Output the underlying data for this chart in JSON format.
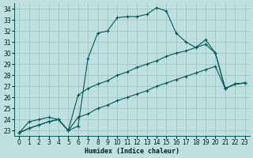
{
  "xlabel": "Humidex (Indice chaleur)",
  "bg_color": "#c0e0e0",
  "grid_color": "#98c8c8",
  "line_color": "#005858",
  "xlim": [
    -0.5,
    23.5
  ],
  "ylim": [
    22.5,
    34.5
  ],
  "yticks": [
    23,
    24,
    25,
    26,
    27,
    28,
    29,
    30,
    31,
    32,
    33,
    34
  ],
  "xticks": [
    0,
    1,
    2,
    3,
    4,
    5,
    6,
    7,
    8,
    9,
    10,
    11,
    12,
    13,
    14,
    15,
    16,
    17,
    18,
    19,
    20,
    21,
    22,
    23
  ],
  "line1_x": [
    0,
    1,
    2,
    3,
    4,
    5,
    6,
    7,
    8,
    9,
    10,
    11,
    12,
    13,
    14,
    15,
    16,
    17,
    18,
    19,
    20,
    21,
    22,
    23
  ],
  "line1_y": [
    22.8,
    23.8,
    24.0,
    24.2,
    24.0,
    23.0,
    23.4,
    29.5,
    31.8,
    32.0,
    33.2,
    33.3,
    33.3,
    33.5,
    34.1,
    33.8,
    31.8,
    31.0,
    30.5,
    31.2,
    30.0,
    26.8,
    27.2,
    27.3
  ],
  "line2_x": [
    0,
    1,
    2,
    3,
    4,
    5,
    6,
    7,
    8,
    9,
    10,
    11,
    12,
    13,
    14,
    15,
    16,
    17,
    18,
    19,
    20,
    21,
    22,
    23
  ],
  "line2_y": [
    22.8,
    23.2,
    23.5,
    23.8,
    24.0,
    23.0,
    26.2,
    26.8,
    27.2,
    27.5,
    28.0,
    28.3,
    28.7,
    29.0,
    29.3,
    29.7,
    30.0,
    30.2,
    30.5,
    30.8,
    30.0,
    26.8,
    27.2,
    27.3
  ],
  "line3_x": [
    0,
    1,
    2,
    3,
    4,
    5,
    6,
    7,
    8,
    9,
    10,
    11,
    12,
    13,
    14,
    15,
    16,
    17,
    18,
    19,
    20,
    21,
    22,
    23
  ],
  "line3_y": [
    22.8,
    23.2,
    23.5,
    23.8,
    24.0,
    23.0,
    24.2,
    24.5,
    25.0,
    25.3,
    25.7,
    26.0,
    26.3,
    26.6,
    27.0,
    27.3,
    27.6,
    27.9,
    28.2,
    28.5,
    28.8,
    26.8,
    27.2,
    27.3
  ],
  "ticklabel_fontsize": 5.5,
  "xlabel_fontsize": 6
}
